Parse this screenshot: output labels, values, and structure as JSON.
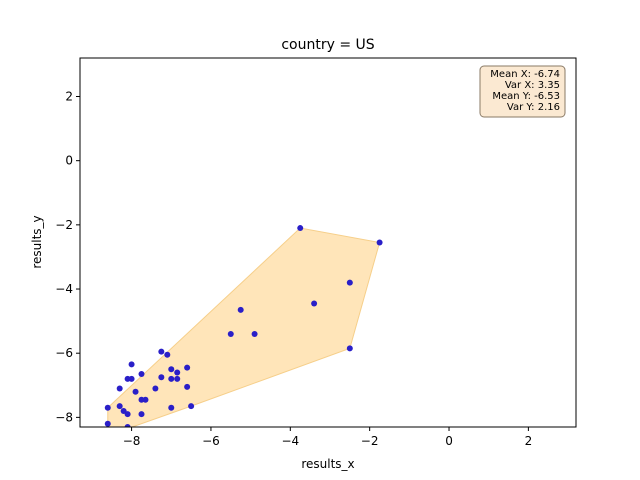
{
  "chart_data": {
    "type": "scatter",
    "title": "country = US",
    "xlabel": "results_x",
    "ylabel": "results_y",
    "xlim": [
      -9.3,
      3.2
    ],
    "ylim": [
      -8.3,
      3.2
    ],
    "xticks": [
      -8,
      -6,
      -4,
      -2,
      0,
      2
    ],
    "yticks": [
      -8,
      -6,
      -4,
      -2,
      0,
      2
    ],
    "x_tick_labels": [
      "−8",
      "−6",
      "−4",
      "−2",
      "0",
      "2"
    ],
    "y_tick_labels": [
      "−8",
      "−6",
      "−4",
      "−2",
      "0",
      "2"
    ],
    "grid": false,
    "point_color": "#2a1fc8",
    "hull_fill": "#ffe0ad",
    "hull_stroke": "#f6cf8a",
    "points": [
      {
        "x": -8.6,
        "y": -7.7
      },
      {
        "x": -8.6,
        "y": -8.2
      },
      {
        "x": -8.3,
        "y": -7.65
      },
      {
        "x": -8.3,
        "y": -7.1
      },
      {
        "x": -8.2,
        "y": -7.8
      },
      {
        "x": -8.1,
        "y": -6.8
      },
      {
        "x": -8.1,
        "y": -7.9
      },
      {
        "x": -8.1,
        "y": -8.3
      },
      {
        "x": -8.0,
        "y": -6.8
      },
      {
        "x": -8.0,
        "y": -6.35
      },
      {
        "x": -7.9,
        "y": -7.2
      },
      {
        "x": -7.75,
        "y": -6.65
      },
      {
        "x": -7.75,
        "y": -7.45
      },
      {
        "x": -7.75,
        "y": -7.9
      },
      {
        "x": -7.65,
        "y": -7.45
      },
      {
        "x": -7.4,
        "y": -7.1
      },
      {
        "x": -7.25,
        "y": -6.75
      },
      {
        "x": -7.25,
        "y": -5.95
      },
      {
        "x": -7.1,
        "y": -6.05
      },
      {
        "x": -7.0,
        "y": -6.5
      },
      {
        "x": -7.0,
        "y": -6.8
      },
      {
        "x": -7.0,
        "y": -7.7
      },
      {
        "x": -6.85,
        "y": -6.8
      },
      {
        "x": -6.85,
        "y": -6.6
      },
      {
        "x": -6.6,
        "y": -6.45
      },
      {
        "x": -6.6,
        "y": -7.05
      },
      {
        "x": -6.5,
        "y": -7.65
      },
      {
        "x": -5.5,
        "y": -5.4
      },
      {
        "x": -5.25,
        "y": -4.65
      },
      {
        "x": -4.9,
        "y": -5.4
      },
      {
        "x": -3.75,
        "y": -2.1
      },
      {
        "x": -3.4,
        "y": -4.45
      },
      {
        "x": -2.5,
        "y": -3.8
      },
      {
        "x": -2.5,
        "y": -5.85
      },
      {
        "x": -1.75,
        "y": -2.55
      }
    ],
    "hull": [
      {
        "x": -8.6,
        "y": -8.3
      },
      {
        "x": -8.1,
        "y": -8.35
      },
      {
        "x": -6.5,
        "y": -7.65
      },
      {
        "x": -2.5,
        "y": -5.85
      },
      {
        "x": -1.75,
        "y": -2.55
      },
      {
        "x": -3.75,
        "y": -2.1
      },
      {
        "x": -8.6,
        "y": -7.7
      }
    ],
    "stats": {
      "lines": [
        "Mean X: -6.74",
        "Var X: 3.35",
        "Mean Y: -6.53",
        "Var Y: 2.16"
      ],
      "placement": "top-right",
      "fill": "#fbe9d2",
      "stroke": "#8a7a66"
    }
  }
}
